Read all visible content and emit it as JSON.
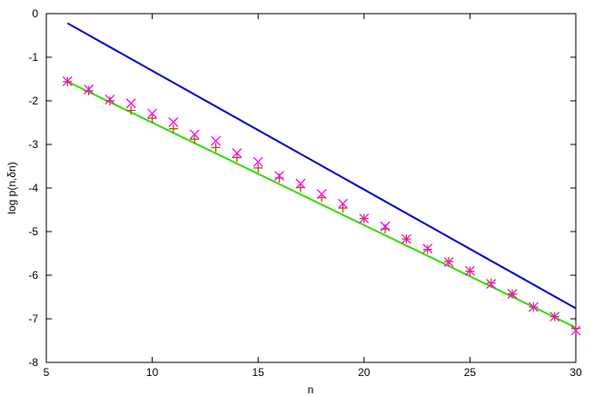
{
  "chart_data": {
    "type": "line",
    "title": "",
    "xlabel": "n",
    "ylabel": "log p(n,δn)",
    "xlim": [
      5,
      30
    ],
    "ylim": [
      -8,
      0
    ],
    "xticks": [
      5,
      10,
      15,
      20,
      25,
      30
    ],
    "yticks": [
      0,
      -1,
      -2,
      -3,
      -4,
      -5,
      -6,
      -7,
      -8
    ],
    "grid": false,
    "legend": "none",
    "series": [
      {
        "kind": "line",
        "color": "#0000cc",
        "x": [
          6,
          30
        ],
        "y": [
          -0.22,
          -6.76
        ]
      },
      {
        "kind": "line",
        "color": "#33dd00",
        "x": [
          6,
          30
        ],
        "y": [
          -1.56,
          -7.2
        ]
      },
      {
        "kind": "markers",
        "marker": "plus",
        "color": "#aa5500",
        "x": [
          6,
          7,
          8,
          9,
          10,
          11,
          12,
          13,
          14,
          15,
          16,
          17,
          18,
          19,
          20,
          21,
          22,
          23,
          24,
          25,
          26,
          27,
          28,
          29,
          30
        ],
        "y": [
          -1.56,
          -1.77,
          -2.0,
          -2.22,
          -2.4,
          -2.64,
          -2.88,
          -3.07,
          -3.3,
          -3.54,
          -3.77,
          -3.99,
          -4.22,
          -4.46,
          -4.7,
          -4.94,
          -5.17,
          -5.41,
          -5.69,
          -5.91,
          -6.18,
          -6.43,
          -6.73,
          -6.95,
          -7.22
        ]
      },
      {
        "kind": "markers",
        "marker": "cross",
        "color": "#ff00ff",
        "x": [
          6,
          7,
          8,
          9,
          10,
          11,
          12,
          13,
          14,
          15,
          16,
          17,
          18,
          19,
          20,
          21,
          22,
          23,
          24,
          25,
          26,
          27,
          28,
          29,
          30
        ],
        "y": [
          -1.55,
          -1.74,
          -1.97,
          -2.06,
          -2.29,
          -2.49,
          -2.77,
          -2.92,
          -3.2,
          -3.4,
          -3.72,
          -3.9,
          -4.14,
          -4.36,
          -4.7,
          -4.88,
          -5.17,
          -5.39,
          -5.7,
          -5.9,
          -6.2,
          -6.43,
          -6.73,
          -6.95,
          -7.27
        ]
      }
    ]
  }
}
